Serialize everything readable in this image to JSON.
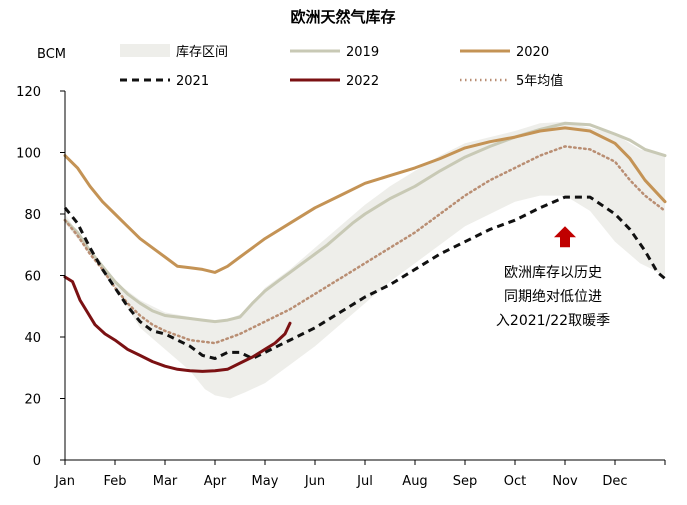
{
  "chart_data": {
    "type": "line",
    "title": "欧洲天然气库存",
    "ylabel": "BCM",
    "ylim": [
      0,
      120
    ],
    "yticks": [
      0,
      20,
      40,
      60,
      80,
      100,
      120
    ],
    "x_ticks": [
      "Jan",
      "Feb",
      "Mar",
      "Apr",
      "May",
      "Jun",
      "Jul",
      "Aug",
      "Sep",
      "Oct",
      "Nov",
      "Dec"
    ],
    "xlim": [
      0,
      12
    ],
    "grid": false,
    "legend_position": "top",
    "band": {
      "name": "库存区间",
      "color": "#eeeeea",
      "upper": [
        [
          0,
          80
        ],
        [
          0.5,
          68
        ],
        [
          1.0,
          58
        ],
        [
          1.5,
          52
        ],
        [
          2.0,
          48
        ],
        [
          2.5,
          46.5
        ],
        [
          3.0,
          45
        ],
        [
          3.3,
          46
        ],
        [
          3.6,
          48
        ],
        [
          4.0,
          56
        ],
        [
          4.5,
          62
        ],
        [
          5.0,
          69
        ],
        [
          5.5,
          76
        ],
        [
          6.0,
          83
        ],
        [
          6.5,
          89
        ],
        [
          7.0,
          94
        ],
        [
          7.5,
          99
        ],
        [
          8.0,
          103
        ],
        [
          8.5,
          105
        ],
        [
          9.0,
          107
        ],
        [
          9.5,
          109.5
        ],
        [
          10.0,
          110
        ],
        [
          10.5,
          108
        ],
        [
          11.0,
          106
        ],
        [
          11.5,
          101
        ],
        [
          12.0,
          99
        ]
      ],
      "lower": [
        [
          0,
          77
        ],
        [
          0.5,
          67
        ],
        [
          1.0,
          56
        ],
        [
          1.5,
          43
        ],
        [
          2.0,
          36
        ],
        [
          2.5,
          29
        ],
        [
          2.8,
          23
        ],
        [
          3.0,
          21
        ],
        [
          3.3,
          20
        ],
        [
          3.6,
          22
        ],
        [
          4.0,
          25
        ],
        [
          4.5,
          31
        ],
        [
          5.0,
          37
        ],
        [
          5.5,
          44
        ],
        [
          6.0,
          51
        ],
        [
          6.5,
          58
        ],
        [
          7.0,
          64
        ],
        [
          7.5,
          70
        ],
        [
          8.0,
          76
        ],
        [
          8.5,
          80
        ],
        [
          9.0,
          84
        ],
        [
          9.5,
          86
        ],
        [
          10.0,
          86
        ],
        [
          10.5,
          81
        ],
        [
          11.0,
          71
        ],
        [
          11.5,
          64
        ],
        [
          12.0,
          60
        ]
      ]
    },
    "series": [
      {
        "name": "2019",
        "color": "#c8c9b5",
        "style": "solid",
        "width": 3,
        "points": [
          [
            0,
            78
          ],
          [
            0.25,
            74
          ],
          [
            0.5,
            68
          ],
          [
            0.75,
            63
          ],
          [
            1.0,
            58
          ],
          [
            1.25,
            54
          ],
          [
            1.5,
            51
          ],
          [
            1.75,
            48.5
          ],
          [
            2.0,
            47
          ],
          [
            2.25,
            46.5
          ],
          [
            2.5,
            46
          ],
          [
            2.75,
            45.5
          ],
          [
            3.0,
            45
          ],
          [
            3.25,
            45.5
          ],
          [
            3.5,
            46.5
          ],
          [
            3.75,
            51
          ],
          [
            4.0,
            55
          ],
          [
            4.25,
            58
          ],
          [
            4.5,
            61
          ],
          [
            4.75,
            64
          ],
          [
            5.0,
            67
          ],
          [
            5.25,
            70
          ],
          [
            5.5,
            73.5
          ],
          [
            5.75,
            77
          ],
          [
            6.0,
            80
          ],
          [
            6.5,
            85
          ],
          [
            7.0,
            89
          ],
          [
            7.5,
            94
          ],
          [
            8.0,
            98.5
          ],
          [
            8.5,
            102
          ],
          [
            9.0,
            105
          ],
          [
            9.5,
            107.5
          ],
          [
            10.0,
            109.5
          ],
          [
            10.5,
            109
          ],
          [
            11.0,
            106
          ],
          [
            11.3,
            104
          ],
          [
            11.6,
            101
          ],
          [
            12.0,
            99
          ]
        ]
      },
      {
        "name": "2020",
        "color": "#c49355",
        "style": "solid",
        "width": 3,
        "points": [
          [
            0,
            99
          ],
          [
            0.25,
            95
          ],
          [
            0.5,
            89
          ],
          [
            0.75,
            84
          ],
          [
            1.0,
            80
          ],
          [
            1.25,
            76
          ],
          [
            1.5,
            72
          ],
          [
            1.75,
            69
          ],
          [
            2.0,
            66
          ],
          [
            2.25,
            63
          ],
          [
            2.5,
            62.5
          ],
          [
            2.75,
            62
          ],
          [
            3.0,
            61
          ],
          [
            3.25,
            63
          ],
          [
            3.5,
            66
          ],
          [
            4.0,
            72
          ],
          [
            4.5,
            77
          ],
          [
            5.0,
            82
          ],
          [
            5.5,
            86
          ],
          [
            6.0,
            90
          ],
          [
            6.5,
            92.5
          ],
          [
            7.0,
            95
          ],
          [
            7.5,
            98
          ],
          [
            8.0,
            101.5
          ],
          [
            8.5,
            103.5
          ],
          [
            9.0,
            105
          ],
          [
            9.5,
            107
          ],
          [
            10.0,
            108
          ],
          [
            10.5,
            107
          ],
          [
            11.0,
            103
          ],
          [
            11.3,
            98
          ],
          [
            11.6,
            91
          ],
          [
            12.0,
            84
          ]
        ]
      },
      {
        "name": "2021",
        "color": "#111111",
        "style": "dashed",
        "width": 3,
        "points": [
          [
            0,
            82
          ],
          [
            0.25,
            77
          ],
          [
            0.5,
            69
          ],
          [
            0.75,
            62
          ],
          [
            1.0,
            56
          ],
          [
            1.25,
            50
          ],
          [
            1.5,
            45
          ],
          [
            1.75,
            42
          ],
          [
            2.0,
            41
          ],
          [
            2.25,
            39
          ],
          [
            2.5,
            37
          ],
          [
            2.75,
            34
          ],
          [
            3.0,
            33
          ],
          [
            3.25,
            35
          ],
          [
            3.5,
            35
          ],
          [
            3.75,
            33
          ],
          [
            4.0,
            35
          ],
          [
            4.25,
            37
          ],
          [
            4.5,
            39
          ],
          [
            5.0,
            43
          ],
          [
            5.5,
            48
          ],
          [
            6.0,
            53
          ],
          [
            6.5,
            57
          ],
          [
            7.0,
            62
          ],
          [
            7.5,
            67
          ],
          [
            8.0,
            71
          ],
          [
            8.5,
            75
          ],
          [
            9.0,
            78
          ],
          [
            9.5,
            82
          ],
          [
            10.0,
            85.5
          ],
          [
            10.5,
            85.5
          ],
          [
            11.0,
            80
          ],
          [
            11.3,
            75
          ],
          [
            11.6,
            68
          ],
          [
            11.85,
            61
          ],
          [
            12.0,
            59
          ]
        ]
      },
      {
        "name": "2022",
        "color": "#7b1113",
        "style": "solid",
        "width": 3,
        "points": [
          [
            0,
            59.5
          ],
          [
            0.15,
            58
          ],
          [
            0.3,
            52
          ],
          [
            0.45,
            48
          ],
          [
            0.6,
            44
          ],
          [
            0.8,
            41
          ],
          [
            1.0,
            39
          ],
          [
            1.25,
            36
          ],
          [
            1.5,
            34
          ],
          [
            1.75,
            32
          ],
          [
            2.0,
            30.5
          ],
          [
            2.25,
            29.5
          ],
          [
            2.5,
            29
          ],
          [
            2.75,
            28.8
          ],
          [
            3.0,
            29
          ],
          [
            3.25,
            29.5
          ],
          [
            3.5,
            31.5
          ],
          [
            3.75,
            33.5
          ],
          [
            4.0,
            36
          ],
          [
            4.2,
            38
          ],
          [
            4.4,
            41
          ],
          [
            4.5,
            44.5
          ]
        ]
      },
      {
        "name": "5年均值",
        "color": "#b98e73",
        "style": "dotted",
        "width": 2.5,
        "points": [
          [
            0,
            78
          ],
          [
            0.25,
            73
          ],
          [
            0.5,
            67
          ],
          [
            0.75,
            62
          ],
          [
            1.0,
            56
          ],
          [
            1.25,
            51
          ],
          [
            1.5,
            47
          ],
          [
            1.75,
            44
          ],
          [
            2.0,
            42
          ],
          [
            2.25,
            40.5
          ],
          [
            2.5,
            39
          ],
          [
            2.75,
            38.5
          ],
          [
            3.0,
            38
          ],
          [
            3.25,
            39.5
          ],
          [
            3.5,
            41
          ],
          [
            4.0,
            45
          ],
          [
            4.5,
            49
          ],
          [
            5.0,
            54
          ],
          [
            5.5,
            59
          ],
          [
            6.0,
            64
          ],
          [
            6.5,
            69
          ],
          [
            7.0,
            74
          ],
          [
            7.5,
            80
          ],
          [
            8.0,
            86
          ],
          [
            8.5,
            91
          ],
          [
            9.0,
            95
          ],
          [
            9.5,
            99
          ],
          [
            10.0,
            102
          ],
          [
            10.5,
            101
          ],
          [
            11.0,
            97
          ],
          [
            11.3,
            91
          ],
          [
            11.6,
            86
          ],
          [
            12.0,
            81
          ]
        ]
      }
    ],
    "annotation": {
      "lines": [
        "欧洲库存以历史",
        "同期绝对低位进",
        "入2021/22取暖季"
      ],
      "arrow_color": "#c00000",
      "arrow_x": 10.0,
      "arrow_y": 76
    }
  }
}
